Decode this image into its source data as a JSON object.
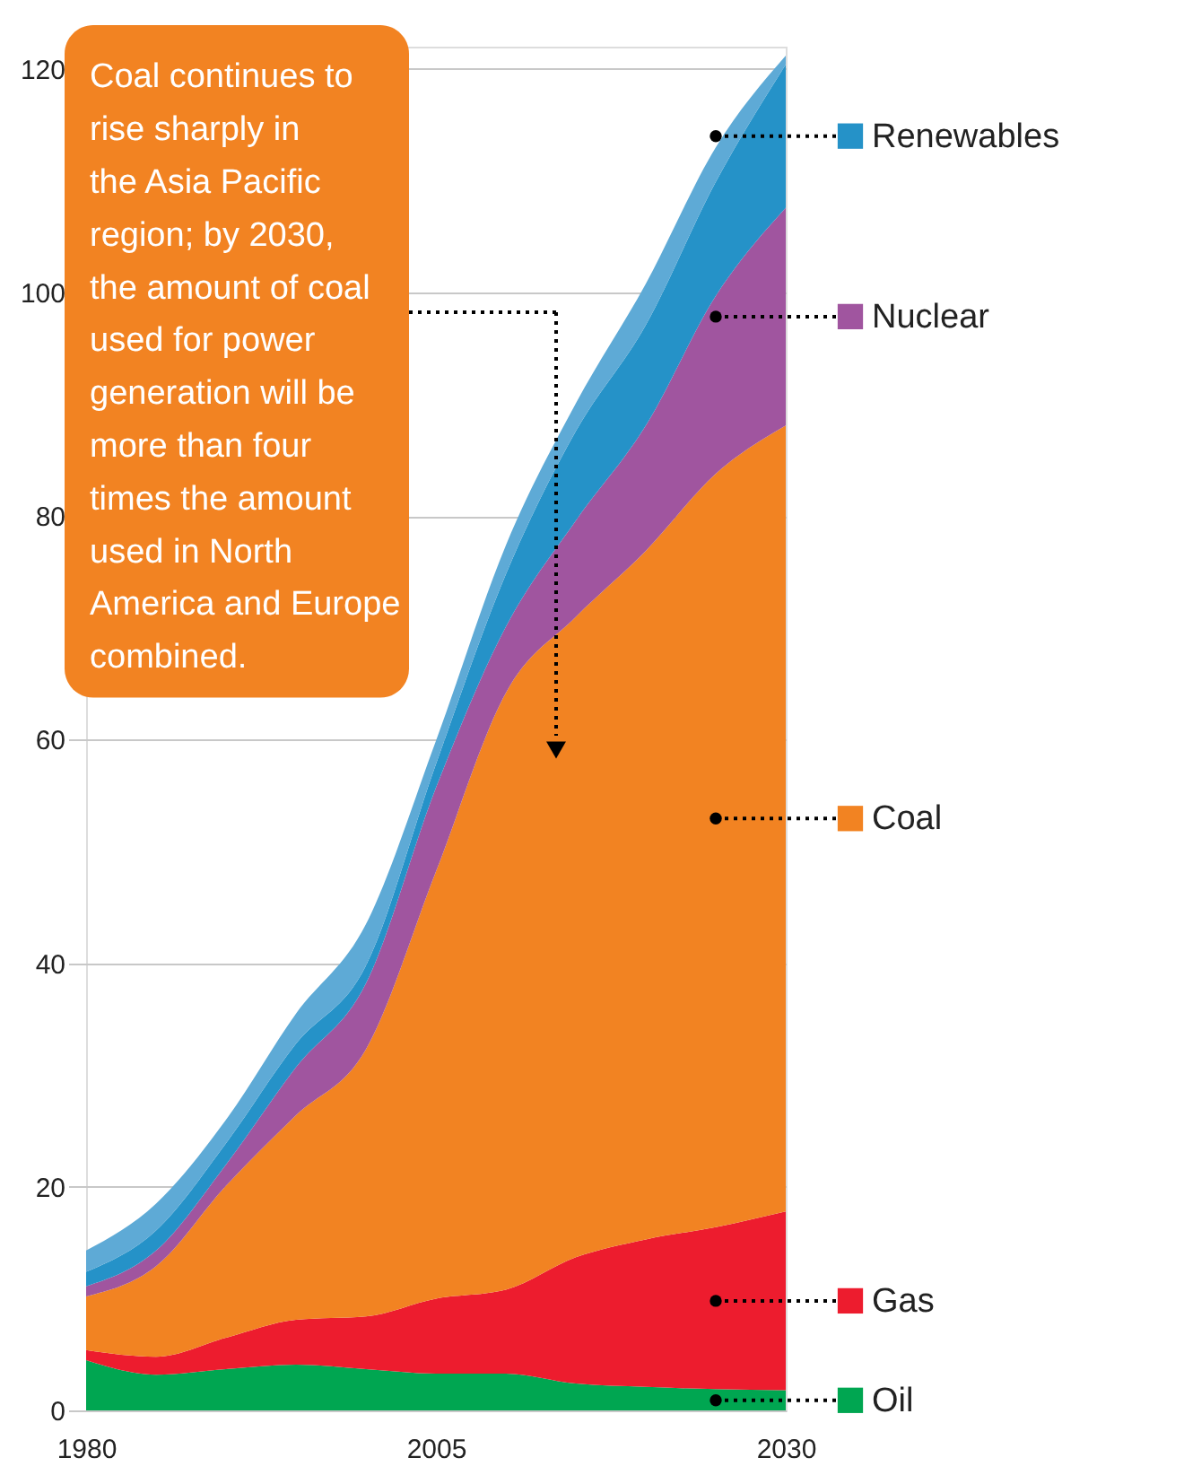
{
  "chart_data": {
    "type": "area",
    "stacked": true,
    "x": [
      1980,
      1985,
      1990,
      1995,
      2000,
      2005,
      2010,
      2015,
      2020,
      2025,
      2030
    ],
    "xlim": [
      1980,
      2030
    ],
    "xticks": [
      1980,
      2005,
      2030
    ],
    "ylim": [
      0,
      122
    ],
    "yticks": [
      0,
      20,
      40,
      60,
      80,
      100,
      120
    ],
    "grid": "y",
    "legend": "right",
    "series": [
      {
        "name": "Oil",
        "color": "#00a651",
        "values": [
          4.5,
          3.2,
          3.7,
          4.1,
          3.7,
          3.3,
          3.3,
          2.4,
          2.1,
          1.9,
          1.8
        ]
      },
      {
        "name": "Gas",
        "color": "#ed1c2e",
        "values": [
          0.9,
          1.6,
          2.8,
          4.0,
          4.7,
          6.7,
          7.5,
          11.3,
          13.2,
          14.5,
          16.0
        ]
      },
      {
        "name": "Coal",
        "color": "#f28322",
        "values": [
          4.8,
          8.1,
          13.6,
          18.3,
          23.9,
          38.2,
          53.4,
          57.3,
          61.6,
          67.4,
          70.3
        ]
      },
      {
        "name": "Nuclear",
        "color": "#a0559f",
        "values": [
          0.9,
          1.4,
          1.9,
          4.3,
          5.9,
          7.5,
          5.9,
          8.6,
          11.2,
          15.9,
          19.5
        ]
      },
      {
        "name": "Renewables",
        "color": "#2592c8",
        "values": [
          1.3,
          1.8,
          1.9,
          2.1,
          1.6,
          2.1,
          4.7,
          8.0,
          9.0,
          10.2,
          12.8
        ]
      },
      {
        "color": "#5eaad6",
        "values": [
          1.9,
          2.4,
          2.1,
          2.7,
          3.7,
          2.1,
          2.6,
          2.5,
          3.7,
          3.1,
          0.8
        ]
      }
    ],
    "annotations": [
      "Coal continues to rise sharply in the Asia Pacific region; by 2030, the amount of coal used for power generation will be more than four times the amount used in North America and Europe combined."
    ]
  }
}
